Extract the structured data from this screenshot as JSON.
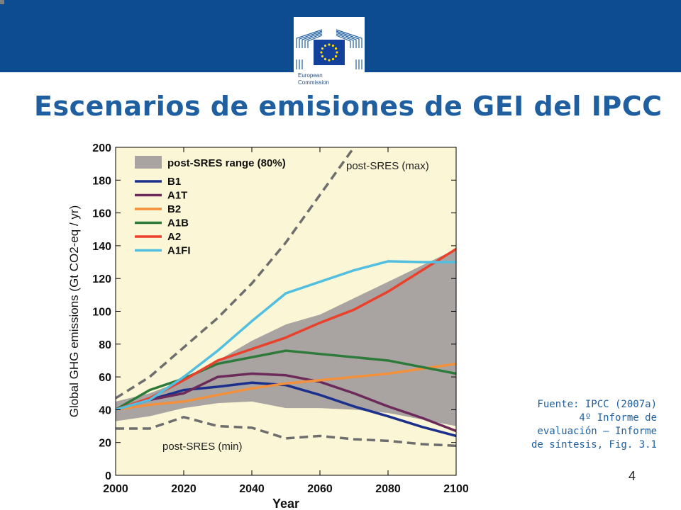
{
  "slide": {
    "title": "Escenarios de emisiones de GEI del IPCC",
    "source_lines": [
      "Fuente: IPCC (2007a)",
      "4º Informe de",
      "evaluación – Informe",
      "de síntesis, Fig. 3.1"
    ],
    "page_number": "4",
    "logo_text": "European\nCommission",
    "colors": {
      "banner": "#0e4c92",
      "title": "#1f5fa0",
      "plot_background": "#fbf6d5"
    }
  },
  "chart_data": {
    "type": "line",
    "xlabel": "Year",
    "ylabel": "Global GHG emissions (Gt CO2-eq / yr)",
    "xlim": [
      2000,
      2100
    ],
    "ylim": [
      0,
      200
    ],
    "xticks": [
      2000,
      2020,
      2040,
      2060,
      2080,
      2100
    ],
    "yticks": [
      0,
      20,
      40,
      60,
      80,
      100,
      120,
      140,
      160,
      180,
      200
    ],
    "legend_position": "top-left",
    "band": {
      "name": "post-SRES range (80%)",
      "color": "#a9a4a1",
      "x": [
        2000,
        2010,
        2020,
        2030,
        2040,
        2050,
        2060,
        2070,
        2080,
        2090,
        2100
      ],
      "upper": [
        45,
        50,
        58,
        70,
        82,
        92,
        98,
        108,
        118,
        128,
        138
      ],
      "lower": [
        33,
        36,
        41,
        44,
        45,
        41,
        41,
        40,
        38,
        34,
        30
      ]
    },
    "series": [
      {
        "name": "B1",
        "color": "#1b2f8c",
        "x": [
          2000,
          2010,
          2020,
          2030,
          2040,
          2050,
          2060,
          2070,
          2080,
          2090,
          2100
        ],
        "values": [
          40,
          46,
          52,
          54,
          56.5,
          55,
          49,
          42,
          36,
          29.5,
          24
        ]
      },
      {
        "name": "A1T",
        "color": "#6c2a5a",
        "x": [
          2000,
          2010,
          2020,
          2030,
          2040,
          2050,
          2060,
          2070,
          2080,
          2090,
          2100
        ],
        "values": [
          40,
          46,
          50,
          60,
          62,
          61,
          57,
          50,
          42,
          35,
          27
        ]
      },
      {
        "name": "B2",
        "color": "#f2903b",
        "x": [
          2000,
          2010,
          2020,
          2030,
          2040,
          2050,
          2060,
          2070,
          2080,
          2090,
          2100
        ],
        "values": [
          40,
          43,
          45,
          49,
          53,
          56,
          58,
          60,
          62,
          65,
          68
        ]
      },
      {
        "name": "A1B",
        "color": "#2e7a3a",
        "x": [
          2000,
          2010,
          2020,
          2030,
          2040,
          2050,
          2060,
          2070,
          2080,
          2090,
          2100
        ],
        "values": [
          40,
          52,
          59,
          68,
          72,
          76,
          74,
          72,
          70,
          66,
          62
        ]
      },
      {
        "name": "A2",
        "color": "#e9412c",
        "x": [
          2000,
          2010,
          2020,
          2030,
          2040,
          2050,
          2060,
          2070,
          2080,
          2090,
          2100
        ],
        "values": [
          40,
          47,
          58,
          70,
          77,
          84,
          93,
          101,
          112,
          125,
          138
        ]
      },
      {
        "name": "A1FI",
        "color": "#52bfe0",
        "x": [
          2000,
          2010,
          2020,
          2030,
          2040,
          2050,
          2060,
          2070,
          2080,
          2090,
          2100
        ],
        "values": [
          40,
          46,
          60,
          76,
          94,
          111,
          118,
          125,
          130.5,
          130,
          130
        ]
      }
    ],
    "dashed_series": [
      {
        "name": "post-SRES (max)",
        "color": "#6e6e6e",
        "x": [
          2000,
          2010,
          2020,
          2030,
          2040,
          2050,
          2060,
          2070
        ],
        "values": [
          47,
          60,
          78,
          96,
          117,
          142,
          171,
          200
        ]
      },
      {
        "name": "post-SRES (min)",
        "color": "#6e6e6e",
        "x": [
          2000,
          2010,
          2020,
          2030,
          2040,
          2050,
          2060,
          2070,
          2080,
          2090,
          2100
        ],
        "values": [
          28.5,
          28.5,
          35.5,
          30,
          29,
          22.5,
          24,
          22,
          21,
          19,
          18
        ]
      }
    ]
  }
}
